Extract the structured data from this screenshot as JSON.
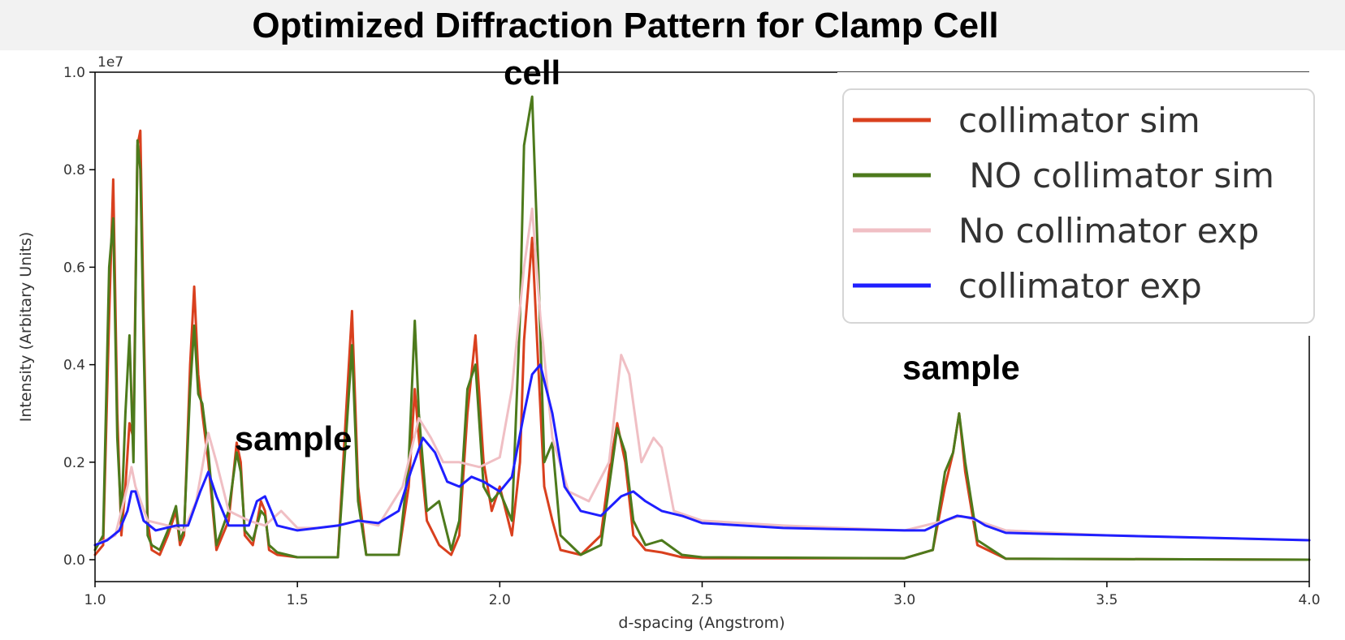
{
  "chart_data": {
    "type": "line",
    "title": "Optimized Diffraction Pattern for Clamp Cell",
    "xlabel": "d-spacing (Angstrom)",
    "ylabel": "Intensity (Arbitary Units)",
    "y_offset_label": "1e7",
    "xlim": [
      1.0,
      4.0
    ],
    "ylim": [
      -0.05,
      1.0
    ],
    "x_ticks": [
      "1.0",
      "1.5",
      "2.0",
      "2.5",
      "3.0",
      "3.5",
      "4.0"
    ],
    "y_ticks": [
      "0.0",
      "0.2",
      "0.4",
      "0.6",
      "0.8",
      "1.0"
    ],
    "legend_position": "top-right",
    "annotations": [
      {
        "text": "cell",
        "x": 2.08,
        "y": 0.975
      },
      {
        "text": "sample",
        "x": 1.49,
        "y": 0.225
      },
      {
        "text": "sample",
        "x": 3.14,
        "y": 0.37
      }
    ],
    "series": [
      {
        "name": "collimator sim",
        "color": "#d9401e",
        "x": [
          1.0,
          1.02,
          1.035,
          1.045,
          1.055,
          1.065,
          1.075,
          1.085,
          1.095,
          1.105,
          1.112,
          1.12,
          1.13,
          1.14,
          1.16,
          1.18,
          1.2,
          1.21,
          1.22,
          1.235,
          1.245,
          1.255,
          1.265,
          1.28,
          1.3,
          1.33,
          1.35,
          1.36,
          1.37,
          1.39,
          1.41,
          1.42,
          1.43,
          1.45,
          1.5,
          1.6,
          1.62,
          1.635,
          1.65,
          1.67,
          1.75,
          1.775,
          1.79,
          1.8,
          1.82,
          1.85,
          1.88,
          1.9,
          1.92,
          1.94,
          1.96,
          1.98,
          2.0,
          2.03,
          2.05,
          2.06,
          2.08,
          2.095,
          2.11,
          2.13,
          2.15,
          2.2,
          2.25,
          2.27,
          2.29,
          2.31,
          2.33,
          2.36,
          2.4,
          2.45,
          2.5,
          3.0,
          3.07,
          3.1,
          3.12,
          3.135,
          3.15,
          3.18,
          3.25,
          4.0
        ],
        "values": [
          0.01,
          0.03,
          0.5,
          0.78,
          0.3,
          0.05,
          0.15,
          0.28,
          0.25,
          0.85,
          0.88,
          0.5,
          0.08,
          0.02,
          0.01,
          0.05,
          0.1,
          0.03,
          0.05,
          0.4,
          0.56,
          0.38,
          0.3,
          0.2,
          0.02,
          0.08,
          0.24,
          0.2,
          0.05,
          0.03,
          0.12,
          0.1,
          0.02,
          0.01,
          0.005,
          0.005,
          0.3,
          0.51,
          0.15,
          0.01,
          0.01,
          0.15,
          0.35,
          0.25,
          0.08,
          0.03,
          0.01,
          0.05,
          0.3,
          0.46,
          0.2,
          0.1,
          0.15,
          0.05,
          0.2,
          0.45,
          0.66,
          0.4,
          0.15,
          0.08,
          0.02,
          0.01,
          0.05,
          0.18,
          0.28,
          0.2,
          0.05,
          0.02,
          0.015,
          0.005,
          0.003,
          0.003,
          0.02,
          0.15,
          0.22,
          0.3,
          0.18,
          0.03,
          0.002,
          0.0
        ]
      },
      {
        "name": " NO collimator sim",
        "color": "#4d7a1c",
        "x": [
          1.0,
          1.02,
          1.035,
          1.045,
          1.055,
          1.065,
          1.075,
          1.085,
          1.095,
          1.105,
          1.112,
          1.12,
          1.13,
          1.14,
          1.16,
          1.18,
          1.2,
          1.21,
          1.22,
          1.235,
          1.245,
          1.255,
          1.265,
          1.28,
          1.3,
          1.33,
          1.35,
          1.36,
          1.37,
          1.39,
          1.41,
          1.42,
          1.43,
          1.45,
          1.5,
          1.6,
          1.62,
          1.635,
          1.65,
          1.67,
          1.75,
          1.775,
          1.79,
          1.8,
          1.82,
          1.85,
          1.88,
          1.9,
          1.92,
          1.94,
          1.96,
          1.98,
          2.0,
          2.03,
          2.05,
          2.06,
          2.08,
          2.095,
          2.11,
          2.13,
          2.15,
          2.2,
          2.25,
          2.27,
          2.29,
          2.31,
          2.33,
          2.36,
          2.4,
          2.45,
          2.5,
          3.0,
          3.07,
          3.1,
          3.12,
          3.135,
          3.15,
          3.18,
          3.25,
          4.0
        ],
        "values": [
          0.02,
          0.05,
          0.6,
          0.7,
          0.25,
          0.08,
          0.3,
          0.46,
          0.2,
          0.86,
          0.8,
          0.45,
          0.05,
          0.03,
          0.02,
          0.06,
          0.11,
          0.04,
          0.06,
          0.35,
          0.48,
          0.34,
          0.32,
          0.22,
          0.03,
          0.1,
          0.22,
          0.18,
          0.06,
          0.04,
          0.1,
          0.09,
          0.03,
          0.015,
          0.005,
          0.005,
          0.25,
          0.44,
          0.12,
          0.01,
          0.01,
          0.2,
          0.49,
          0.3,
          0.1,
          0.12,
          0.02,
          0.08,
          0.35,
          0.4,
          0.15,
          0.12,
          0.14,
          0.08,
          0.5,
          0.85,
          0.95,
          0.6,
          0.2,
          0.24,
          0.05,
          0.01,
          0.03,
          0.15,
          0.27,
          0.22,
          0.08,
          0.03,
          0.04,
          0.01,
          0.005,
          0.003,
          0.02,
          0.18,
          0.22,
          0.3,
          0.2,
          0.04,
          0.002,
          0.0
        ]
      },
      {
        "name": "No collimator exp",
        "color": "#f0bfc4",
        "x": [
          1.0,
          1.05,
          1.08,
          1.09,
          1.1,
          1.13,
          1.18,
          1.22,
          1.25,
          1.28,
          1.3,
          1.33,
          1.38,
          1.42,
          1.46,
          1.5,
          1.55,
          1.6,
          1.65,
          1.7,
          1.76,
          1.8,
          1.83,
          1.86,
          1.9,
          1.95,
          2.0,
          2.03,
          2.06,
          2.08,
          2.1,
          2.13,
          2.17,
          2.22,
          2.27,
          2.3,
          2.32,
          2.35,
          2.38,
          2.4,
          2.43,
          2.5,
          2.7,
          3.0,
          3.1,
          3.14,
          3.18,
          3.25,
          3.5,
          4.0
        ],
        "values": [
          0.03,
          0.05,
          0.15,
          0.19,
          0.15,
          0.08,
          0.07,
          0.06,
          0.12,
          0.26,
          0.2,
          0.1,
          0.08,
          0.07,
          0.1,
          0.065,
          0.065,
          0.07,
          0.08,
          0.07,
          0.15,
          0.29,
          0.25,
          0.2,
          0.2,
          0.19,
          0.21,
          0.35,
          0.6,
          0.72,
          0.5,
          0.25,
          0.14,
          0.12,
          0.2,
          0.42,
          0.38,
          0.2,
          0.25,
          0.23,
          0.1,
          0.08,
          0.07,
          0.06,
          0.08,
          0.09,
          0.08,
          0.06,
          0.05,
          0.04
        ]
      },
      {
        "name": "collimator exp",
        "color": "#1f1fff",
        "x": [
          1.0,
          1.03,
          1.06,
          1.08,
          1.09,
          1.1,
          1.12,
          1.15,
          1.2,
          1.23,
          1.26,
          1.28,
          1.3,
          1.33,
          1.38,
          1.4,
          1.42,
          1.45,
          1.5,
          1.6,
          1.65,
          1.7,
          1.75,
          1.78,
          1.81,
          1.84,
          1.87,
          1.9,
          1.93,
          1.96,
          2.0,
          2.03,
          2.06,
          2.08,
          2.1,
          2.13,
          2.16,
          2.2,
          2.25,
          2.3,
          2.33,
          2.36,
          2.4,
          2.45,
          2.5,
          2.7,
          3.0,
          3.05,
          3.1,
          3.13,
          3.17,
          3.2,
          3.25,
          3.5,
          4.0
        ],
        "values": [
          0.03,
          0.04,
          0.06,
          0.1,
          0.14,
          0.14,
          0.08,
          0.06,
          0.07,
          0.07,
          0.14,
          0.18,
          0.13,
          0.07,
          0.07,
          0.12,
          0.13,
          0.07,
          0.06,
          0.07,
          0.08,
          0.075,
          0.1,
          0.18,
          0.25,
          0.22,
          0.16,
          0.15,
          0.17,
          0.16,
          0.14,
          0.17,
          0.3,
          0.38,
          0.4,
          0.3,
          0.15,
          0.1,
          0.09,
          0.13,
          0.14,
          0.12,
          0.1,
          0.09,
          0.075,
          0.065,
          0.06,
          0.06,
          0.08,
          0.09,
          0.085,
          0.07,
          0.055,
          0.05,
          0.04
        ]
      }
    ]
  }
}
